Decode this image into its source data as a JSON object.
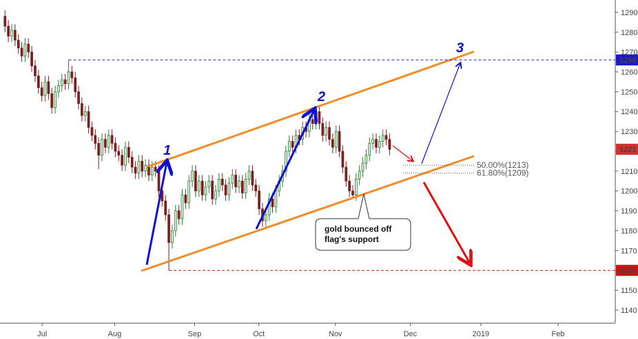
{
  "chart_data": {
    "type": "candlestick",
    "xlim": [
      -1.5,
      182.5
    ],
    "xticks": [
      {
        "value": 11.1,
        "label": "Jul"
      },
      {
        "value": 32.8,
        "label": "Aug"
      },
      {
        "value": 56.7,
        "label": "Sep"
      },
      {
        "value": 75.9,
        "label": "Oct"
      },
      {
        "value": 98.8,
        "label": "Nov"
      },
      {
        "value": 121.2,
        "label": "Dec"
      },
      {
        "value": 142.3,
        "label": "2019"
      },
      {
        "value": 165.4,
        "label": "Feb"
      }
    ],
    "ylim": [
      1133.4,
      1296.2
    ],
    "yticks": [
      1140,
      1150,
      1160,
      1170,
      1180,
      1190,
      1200,
      1210,
      1220,
      1230,
      1240,
      1250,
      1260,
      1270,
      1280,
      1290
    ],
    "up_color": "#2e7d32",
    "down_color": "#7b1f1f",
    "open": [
      1288,
      1283,
      1278,
      1281,
      1276,
      1272,
      1268,
      1274,
      1270,
      1263,
      1258,
      1252,
      1248,
      1255,
      1249,
      1242,
      1250,
      1253,
      1256,
      1254,
      1260,
      1257,
      1250,
      1244,
      1238,
      1240,
      1232,
      1228,
      1224,
      1218,
      1226,
      1222,
      1228,
      1224,
      1220,
      1218,
      1213,
      1222,
      1217,
      1212,
      1209,
      1215,
      1210,
      1213,
      1208,
      1212,
      1210,
      1200,
      1195,
      1188,
      1174,
      1180,
      1190,
      1186,
      1198,
      1194,
      1205,
      1210,
      1200,
      1205,
      1198,
      1202,
      1205,
      1196,
      1200,
      1206,
      1203,
      1198,
      1204,
      1208,
      1202,
      1205,
      1199,
      1206,
      1210,
      1203,
      1200,
      1191,
      1185,
      1188,
      1196,
      1192,
      1200,
      1205,
      1210,
      1220,
      1225,
      1222,
      1228,
      1226,
      1232,
      1230,
      1236,
      1234,
      1240,
      1234,
      1228,
      1232,
      1226,
      1222,
      1230,
      1220,
      1212,
      1205,
      1200,
      1198,
      1206,
      1210,
      1214,
      1218,
      1224,
      1226,
      1222,
      1225,
      1228,
      1226
    ],
    "high": [
      1291,
      1286,
      1284,
      1284,
      1279,
      1275,
      1277,
      1277,
      1273,
      1266,
      1261,
      1255,
      1258,
      1258,
      1252,
      1253,
      1256,
      1259,
      1259,
      1266,
      1263,
      1260,
      1253,
      1247,
      1243,
      1243,
      1235,
      1231,
      1227,
      1229,
      1229,
      1231,
      1231,
      1227,
      1223,
      1221,
      1225,
      1225,
      1220,
      1215,
      1218,
      1218,
      1216,
      1216,
      1215,
      1215,
      1213,
      1203,
      1198,
      1191,
      1183,
      1193,
      1193,
      1201,
      1201,
      1208,
      1213,
      1213,
      1208,
      1208,
      1205,
      1208,
      1208,
      1203,
      1209,
      1209,
      1206,
      1207,
      1211,
      1211,
      1208,
      1208,
      1209,
      1213,
      1213,
      1206,
      1203,
      1194,
      1191,
      1199,
      1199,
      1203,
      1208,
      1213,
      1223,
      1228,
      1228,
      1231,
      1231,
      1235,
      1235,
      1239,
      1239,
      1243,
      1243,
      1237,
      1235,
      1235,
      1229,
      1233,
      1233,
      1223,
      1215,
      1208,
      1203,
      1209,
      1213,
      1217,
      1221,
      1227,
      1229,
      1229,
      1228,
      1231,
      1231,
      1229
    ],
    "low": [
      1280,
      1275,
      1275,
      1273,
      1269,
      1265,
      1265,
      1267,
      1260,
      1255,
      1249,
      1245,
      1245,
      1246,
      1239,
      1239,
      1247,
      1250,
      1251,
      1251,
      1254,
      1247,
      1241,
      1235,
      1235,
      1229,
      1225,
      1221,
      1211,
      1215,
      1219,
      1219,
      1221,
      1217,
      1215,
      1210,
      1210,
      1214,
      1209,
      1206,
      1206,
      1207,
      1207,
      1205,
      1205,
      1207,
      1197,
      1192,
      1185,
      1160,
      1171,
      1177,
      1183,
      1183,
      1191,
      1191,
      1202,
      1197,
      1197,
      1195,
      1195,
      1199,
      1193,
      1193,
      1197,
      1200,
      1195,
      1195,
      1201,
      1199,
      1199,
      1196,
      1196,
      1203,
      1200,
      1197,
      1188,
      1182,
      1182,
      1185,
      1189,
      1189,
      1197,
      1202,
      1207,
      1217,
      1219,
      1219,
      1223,
      1223,
      1227,
      1227,
      1231,
      1231,
      1231,
      1225,
      1225,
      1223,
      1219,
      1219,
      1217,
      1209,
      1202,
      1197,
      1197,
      1195,
      1203,
      1207,
      1211,
      1215,
      1221,
      1219,
      1219,
      1222,
      1223,
      1218
    ],
    "close": [
      1283,
      1278,
      1281,
      1276,
      1272,
      1268,
      1274,
      1270,
      1263,
      1258,
      1252,
      1248,
      1255,
      1249,
      1242,
      1250,
      1253,
      1256,
      1254,
      1260,
      1257,
      1250,
      1244,
      1238,
      1240,
      1232,
      1228,
      1224,
      1218,
      1226,
      1222,
      1228,
      1224,
      1220,
      1218,
      1213,
      1222,
      1217,
      1212,
      1209,
      1215,
      1210,
      1213,
      1208,
      1212,
      1210,
      1200,
      1195,
      1188,
      1174,
      1180,
      1190,
      1186,
      1198,
      1194,
      1205,
      1210,
      1200,
      1205,
      1198,
      1202,
      1205,
      1196,
      1200,
      1206,
      1203,
      1198,
      1204,
      1208,
      1202,
      1205,
      1199,
      1206,
      1210,
      1203,
      1200,
      1191,
      1185,
      1188,
      1196,
      1192,
      1200,
      1205,
      1210,
      1220,
      1225,
      1222,
      1228,
      1226,
      1232,
      1230,
      1236,
      1234,
      1240,
      1234,
      1228,
      1232,
      1226,
      1222,
      1230,
      1220,
      1212,
      1205,
      1200,
      1198,
      1206,
      1210,
      1214,
      1218,
      1224,
      1226,
      1222,
      1225,
      1228,
      1226,
      1221
    ],
    "levels": [
      {
        "value": 1266,
        "color": "#1a1acc",
        "start": 19
      },
      {
        "value": 1160,
        "color": "#cc1111",
        "start": 49
      }
    ],
    "last_price": {
      "value": 1221,
      "color": "#d32f2f"
    },
    "fib_levels": [
      {
        "value": 1213,
        "label": "50.00%(1213)"
      },
      {
        "value": 1209,
        "label": "61.80%(1209)"
      }
    ],
    "wave_labels": [
      "1",
      "2",
      "3"
    ],
    "annotation": [
      "gold bounced off",
      "flag's support"
    ]
  }
}
